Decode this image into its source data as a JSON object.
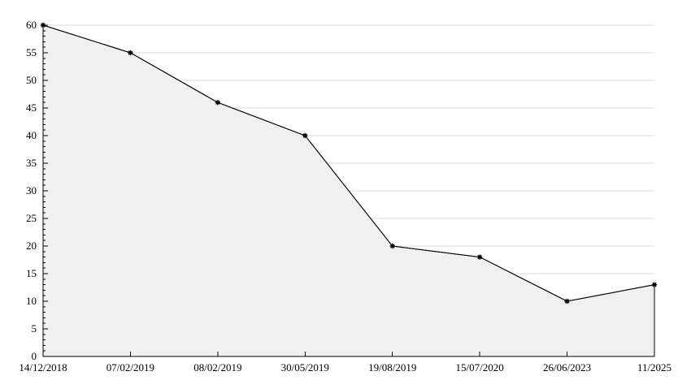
{
  "chart_data": {
    "type": "area",
    "title": "",
    "xlabel": "",
    "ylabel": "",
    "categories": [
      "14/12/2018",
      "07/02/2019",
      "08/02/2019",
      "30/05/2019",
      "19/08/2019",
      "15/07/2020",
      "26/06/2023",
      "11/2025"
    ],
    "values": [
      60,
      55,
      46,
      40,
      20,
      18,
      10,
      13
    ],
    "ylim": [
      0,
      60
    ],
    "ytick_step": 5,
    "yminor_step": 1,
    "ytick_labels": [
      "0",
      "5",
      "10",
      "15",
      "20",
      "25",
      "30",
      "35",
      "40",
      "45",
      "50",
      "55",
      "60"
    ],
    "grid": true,
    "legend_position": "none",
    "marker": "star",
    "colors": {
      "line": "#000000",
      "marker": "#000000",
      "fill": "#f0f0f0",
      "grid": "#d9d9d9",
      "axis": "#000000",
      "text": "#000000",
      "background": "#ffffff"
    }
  }
}
